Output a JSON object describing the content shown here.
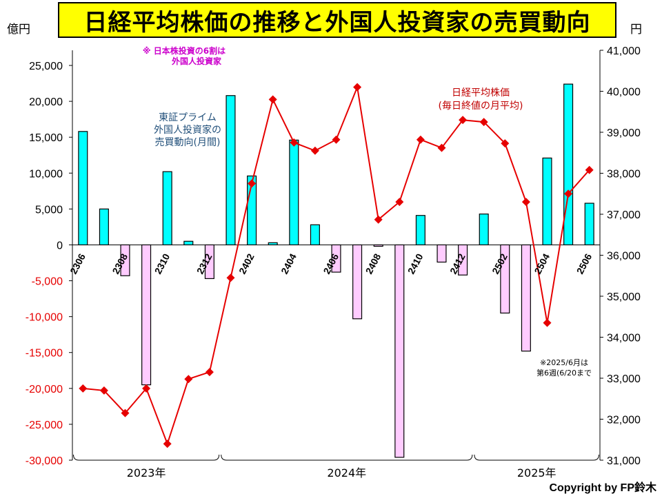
{
  "header": {
    "title": "日経平均株価の推移と外国人投資家の売買動向",
    "left_unit": "億円",
    "right_unit": "円"
  },
  "annotations": {
    "foreign_share_line1": "※ 日本株投資の6割は",
    "foreign_share_line2": "外国人投資家",
    "bar_series_line1": "東証プライム",
    "bar_series_line2": "外国人投資家の",
    "bar_series_line3": "売買動向(月間)",
    "line_series_line1": "日経平均株価",
    "line_series_line2": "(毎日終値の月平均)",
    "note_line1": "※2025/6月は",
    "note_line2": "第6週(6/20まで"
  },
  "footer": {
    "copyright": "Copyright by FP鈴木"
  },
  "colors": {
    "bar_positive": "#00ffff",
    "bar_negative": "#ffccff",
    "line": "#e60000",
    "title_bg": "#ffff00",
    "bar_label": "#1f4e79",
    "line_label": "#c00000",
    "note_magenta": "#cc00cc"
  },
  "chart_data": {
    "type": "bar+line",
    "months": [
      "2306",
      "2307",
      "2308",
      "2309",
      "2310",
      "2311",
      "2312",
      "2401",
      "2402",
      "2403",
      "2404",
      "2405",
      "2406",
      "2407",
      "2408",
      "2409",
      "2410",
      "2411",
      "2412",
      "2501",
      "2502",
      "2503",
      "2504",
      "2505",
      "2506"
    ],
    "x_tick_labels": [
      "2306",
      "2308",
      "2310",
      "2312",
      "2402",
      "2404",
      "2406",
      "2408",
      "2410",
      "2412",
      "2502",
      "2504",
      "2506"
    ],
    "year_labels": [
      {
        "label": "2023年",
        "from": "2306",
        "to": "2312"
      },
      {
        "label": "2024年",
        "from": "2401",
        "to": "2412"
      },
      {
        "label": "2025年",
        "from": "2501",
        "to": "2506"
      }
    ],
    "series": [
      {
        "name": "東証プライム外国人投資家の売買動向(月間)",
        "type": "bar",
        "axis": "left",
        "values": [
          15800,
          5000,
          -4300,
          -19500,
          10200,
          500,
          -4700,
          20800,
          9600,
          300,
          14600,
          2800,
          -3800,
          -10300,
          -200,
          -29600,
          4100,
          -2400,
          -4200,
          4300,
          -9500,
          -14800,
          12100,
          22400,
          5800
        ]
      },
      {
        "name": "日経平均株価(毎日終値の月平均)",
        "type": "line",
        "axis": "right",
        "values": [
          32750,
          32700,
          32150,
          32750,
          31400,
          32980,
          33150,
          35450,
          37750,
          39800,
          38750,
          38550,
          38820,
          40100,
          36870,
          37300,
          38820,
          38620,
          39300,
          39250,
          38730,
          37300,
          34350,
          37500,
          38080
        ]
      }
    ],
    "y_left": {
      "min": -30000,
      "max": 25000,
      "ticks": [
        25000,
        20000,
        15000,
        10000,
        5000,
        0,
        -5000,
        -10000,
        -15000,
        -20000,
        -25000,
        -30000
      ],
      "tick_labels": [
        "25,000",
        "20,000",
        "15,000",
        "10,000",
        "5,000",
        "0",
        "-5,000",
        "-10,000",
        "-15,000",
        "-20,000",
        "-25,000",
        "-30,000"
      ]
    },
    "y_right": {
      "min": 31000,
      "max": 41000,
      "ticks": [
        41000,
        40000,
        39000,
        38000,
        37000,
        36000,
        35000,
        34000,
        33000,
        32000,
        31000
      ],
      "tick_labels": [
        "41,000",
        "40,000",
        "39,000",
        "38,000",
        "37,000",
        "36,000",
        "35,000",
        "34,000",
        "33,000",
        "32,000",
        "31,000"
      ]
    },
    "grid": false
  }
}
